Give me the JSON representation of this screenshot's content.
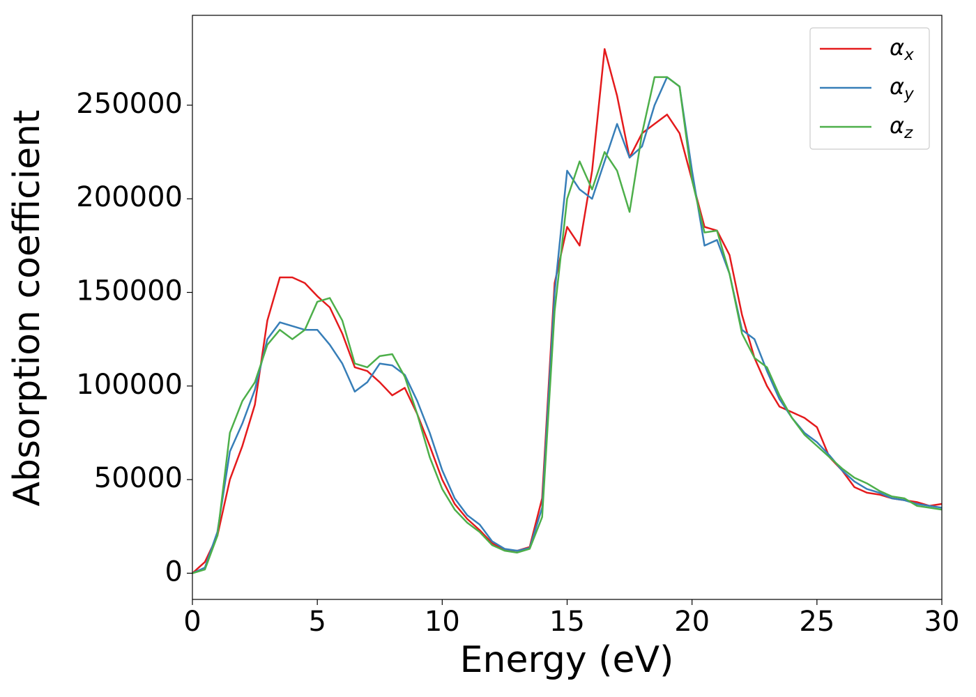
{
  "chart_data": {
    "type": "line",
    "xlabel": "Energy (eV)",
    "ylabel": "Absorption coefficient",
    "x": [
      0,
      0.5,
      1,
      1.5,
      2,
      2.5,
      3,
      3.5,
      4,
      4.5,
      5,
      5.5,
      6,
      6.5,
      7,
      7.5,
      8,
      8.5,
      9,
      9.5,
      10,
      10.5,
      11,
      11.5,
      12,
      12.5,
      13,
      13.5,
      14,
      14.5,
      15,
      15.5,
      16,
      16.5,
      17,
      17.5,
      18,
      18.5,
      19,
      19.5,
      20,
      20.5,
      21,
      21.5,
      22,
      22.5,
      23,
      23.5,
      24,
      24.5,
      25,
      25.5,
      26,
      26.5,
      27,
      27.5,
      28,
      28.5,
      29,
      29.5,
      30
    ],
    "series": [
      {
        "name": "α_x",
        "color": "#e41a1c",
        "values": [
          0,
          6000,
          20000,
          50000,
          68000,
          90000,
          135000,
          158000,
          158000,
          155000,
          148000,
          142000,
          128000,
          110000,
          108000,
          102000,
          95000,
          99000,
          85000,
          68000,
          50000,
          37000,
          29000,
          23000,
          16000,
          12500,
          12000,
          14000,
          40000,
          155000,
          185000,
          175000,
          215000,
          280000,
          255000,
          222000,
          235000,
          240000,
          245000,
          235000,
          210000,
          185000,
          183000,
          170000,
          138000,
          115000,
          100000,
          89000,
          86000,
          83000,
          78000,
          62000,
          55000,
          46000,
          43000,
          42000,
          40000,
          39000,
          38000,
          36000,
          37000
        ]
      },
      {
        "name": "α_y",
        "color": "#377eb8",
        "values": [
          0,
          3000,
          22000,
          65000,
          80000,
          98000,
          125000,
          134000,
          132000,
          130000,
          130000,
          122000,
          112000,
          97000,
          102000,
          112000,
          111000,
          106000,
          92000,
          75000,
          55000,
          40000,
          31000,
          26000,
          17000,
          13000,
          12000,
          13500,
          35000,
          150000,
          215000,
          205000,
          200000,
          220000,
          240000,
          222000,
          228000,
          250000,
          265000,
          260000,
          215000,
          175000,
          178000,
          160000,
          130000,
          125000,
          108000,
          93000,
          83000,
          75000,
          70000,
          63000,
          55000,
          49000,
          45000,
          43000,
          40000,
          39000,
          37000,
          36000,
          35000
        ]
      },
      {
        "name": "α_z",
        "color": "#4daf4a",
        "values": [
          0,
          2000,
          20000,
          75000,
          92000,
          102000,
          122000,
          130000,
          125000,
          130000,
          145000,
          147000,
          135000,
          112000,
          110000,
          116000,
          117000,
          105000,
          85000,
          62000,
          45000,
          34000,
          27000,
          22000,
          15000,
          12000,
          11000,
          13000,
          30000,
          140000,
          200000,
          220000,
          205000,
          225000,
          215000,
          193000,
          235000,
          265000,
          265000,
          260000,
          210000,
          182000,
          183000,
          160000,
          128000,
          115000,
          110000,
          95000,
          83000,
          74000,
          68000,
          62000,
          56000,
          51000,
          48000,
          44000,
          41000,
          40000,
          36000,
          35000,
          34000
        ]
      }
    ],
    "xlim": [
      0,
      30
    ],
    "xticks": [
      0,
      5,
      10,
      15,
      20,
      25,
      30
    ],
    "ylim": [
      -14000,
      298000
    ],
    "yticks": [
      0,
      50000,
      100000,
      150000,
      200000,
      250000
    ],
    "legend": "upper right"
  }
}
